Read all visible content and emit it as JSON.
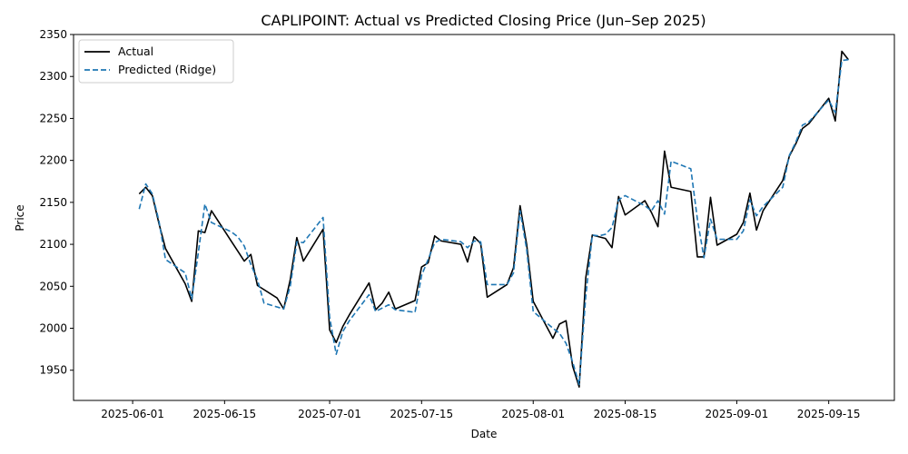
{
  "chart_data": {
    "type": "line",
    "title": "CAPLIPOINT: Actual vs Predicted Closing Price (Jun–Sep 2025)",
    "xlabel": "Date",
    "ylabel": "Price",
    "xlim": [
      "2025-05-23",
      "2025-09-25"
    ],
    "ylim": [
      1914,
      2350
    ],
    "x_ticks": [
      "2025-06-01",
      "2025-06-15",
      "2025-07-01",
      "2025-07-15",
      "2025-08-01",
      "2025-08-15",
      "2025-09-01",
      "2025-09-15"
    ],
    "y_ticks": [
      1950,
      2000,
      2050,
      2100,
      2150,
      2200,
      2250,
      2300,
      2350
    ],
    "grid": false,
    "legend": "top-left",
    "series": [
      {
        "name": "Actual",
        "color": "#000000",
        "style": "solid",
        "points": [
          [
            "2025-06-02",
            2160
          ],
          [
            "2025-06-03",
            2168
          ],
          [
            "2025-06-04",
            2158
          ],
          [
            "2025-06-05",
            2125
          ],
          [
            "2025-06-06",
            2095
          ],
          [
            "2025-06-09",
            2053
          ],
          [
            "2025-06-10",
            2032
          ],
          [
            "2025-06-11",
            2116
          ],
          [
            "2025-06-12",
            2114
          ],
          [
            "2025-06-13",
            2140
          ],
          [
            "2025-06-16",
            2104
          ],
          [
            "2025-06-17",
            2092
          ],
          [
            "2025-06-18",
            2080
          ],
          [
            "2025-06-19",
            2088
          ],
          [
            "2025-06-20",
            2051
          ],
          [
            "2025-06-23",
            2036
          ],
          [
            "2025-06-24",
            2023
          ],
          [
            "2025-06-25",
            2058
          ],
          [
            "2025-06-26",
            2108
          ],
          [
            "2025-06-27",
            2080
          ],
          [
            "2025-06-30",
            2118
          ],
          [
            "2025-07-01",
            1998
          ],
          [
            "2025-07-02",
            1983
          ],
          [
            "2025-07-03",
            2002
          ],
          [
            "2025-07-04",
            2016
          ],
          [
            "2025-07-07",
            2054
          ],
          [
            "2025-07-08",
            2022
          ],
          [
            "2025-07-09",
            2030
          ],
          [
            "2025-07-10",
            2043
          ],
          [
            "2025-07-11",
            2023
          ],
          [
            "2025-07-14",
            2033
          ],
          [
            "2025-07-15",
            2073
          ],
          [
            "2025-07-16",
            2078
          ],
          [
            "2025-07-17",
            2110
          ],
          [
            "2025-07-18",
            2104
          ],
          [
            "2025-07-21",
            2100
          ],
          [
            "2025-07-22",
            2079
          ],
          [
            "2025-07-23",
            2109
          ],
          [
            "2025-07-24",
            2101
          ],
          [
            "2025-07-25",
            2037
          ],
          [
            "2025-07-28",
            2052
          ],
          [
            "2025-07-29",
            2072
          ],
          [
            "2025-07-30",
            2146
          ],
          [
            "2025-07-31",
            2100
          ],
          [
            "2025-08-01",
            2032
          ],
          [
            "2025-08-04",
            1988
          ],
          [
            "2025-08-05",
            2005
          ],
          [
            "2025-08-06",
            2009
          ],
          [
            "2025-08-07",
            1955
          ],
          [
            "2025-08-08",
            1930
          ],
          [
            "2025-08-09",
            2060
          ],
          [
            "2025-08-10",
            2111
          ],
          [
            "2025-08-11",
            2109
          ],
          [
            "2025-08-12",
            2107
          ],
          [
            "2025-08-13",
            2096
          ],
          [
            "2025-08-14",
            2157
          ],
          [
            "2025-08-15",
            2135
          ],
          [
            "2025-08-18",
            2152
          ],
          [
            "2025-08-19",
            2138
          ],
          [
            "2025-08-20",
            2121
          ],
          [
            "2025-08-21",
            2211
          ],
          [
            "2025-08-22",
            2168
          ],
          [
            "2025-08-25",
            2163
          ],
          [
            "2025-08-26",
            2085
          ],
          [
            "2025-08-27",
            2085
          ],
          [
            "2025-08-28",
            2156
          ],
          [
            "2025-08-29",
            2099
          ],
          [
            "2025-09-01",
            2112
          ],
          [
            "2025-09-02",
            2126
          ],
          [
            "2025-09-03",
            2161
          ],
          [
            "2025-09-04",
            2117
          ],
          [
            "2025-09-05",
            2140
          ],
          [
            "2025-09-08",
            2176
          ],
          [
            "2025-09-09",
            2205
          ],
          [
            "2025-09-10",
            2220
          ],
          [
            "2025-09-11",
            2238
          ],
          [
            "2025-09-12",
            2244
          ],
          [
            "2025-09-15",
            2274
          ],
          [
            "2025-09-16",
            2247
          ],
          [
            "2025-09-17",
            2330
          ],
          [
            "2025-09-18",
            2320
          ]
        ]
      },
      {
        "name": "Predicted (Ridge)",
        "color": "#1f77b4",
        "style": "dashed",
        "points": [
          [
            "2025-06-02",
            2142
          ],
          [
            "2025-06-03",
            2172
          ],
          [
            "2025-06-04",
            2160
          ],
          [
            "2025-06-05",
            2128
          ],
          [
            "2025-06-06",
            2082
          ],
          [
            "2025-06-09",
            2066
          ],
          [
            "2025-06-10",
            2035
          ],
          [
            "2025-06-11",
            2090
          ],
          [
            "2025-06-12",
            2148
          ],
          [
            "2025-06-13",
            2126
          ],
          [
            "2025-06-16",
            2115
          ],
          [
            "2025-06-17",
            2109
          ],
          [
            "2025-06-18",
            2098
          ],
          [
            "2025-06-19",
            2076
          ],
          [
            "2025-06-20",
            2058
          ],
          [
            "2025-06-21",
            2030
          ],
          [
            "2025-06-24",
            2023
          ],
          [
            "2025-06-25",
            2050
          ],
          [
            "2025-06-26",
            2103
          ],
          [
            "2025-06-27",
            2102
          ],
          [
            "2025-06-30",
            2132
          ],
          [
            "2025-07-01",
            2013
          ],
          [
            "2025-07-02",
            1969
          ],
          [
            "2025-07-03",
            1996
          ],
          [
            "2025-07-04",
            2009
          ],
          [
            "2025-07-07",
            2040
          ],
          [
            "2025-07-08",
            2020
          ],
          [
            "2025-07-09",
            2024
          ],
          [
            "2025-07-10",
            2028
          ],
          [
            "2025-07-11",
            2022
          ],
          [
            "2025-07-14",
            2019
          ],
          [
            "2025-07-15",
            2063
          ],
          [
            "2025-07-16",
            2082
          ],
          [
            "2025-07-17",
            2102
          ],
          [
            "2025-07-18",
            2106
          ],
          [
            "2025-07-21",
            2103
          ],
          [
            "2025-07-22",
            2096
          ],
          [
            "2025-07-23",
            2104
          ],
          [
            "2025-07-24",
            2103
          ],
          [
            "2025-07-25",
            2052
          ],
          [
            "2025-07-28",
            2052
          ],
          [
            "2025-07-29",
            2066
          ],
          [
            "2025-07-30",
            2140
          ],
          [
            "2025-07-31",
            2094
          ],
          [
            "2025-08-01",
            2020
          ],
          [
            "2025-08-04",
            2000
          ],
          [
            "2025-08-05",
            1994
          ],
          [
            "2025-08-06",
            1982
          ],
          [
            "2025-08-07",
            1960
          ],
          [
            "2025-08-08",
            1933
          ],
          [
            "2025-08-09",
            2038
          ],
          [
            "2025-08-10",
            2111
          ],
          [
            "2025-08-11",
            2110
          ],
          [
            "2025-08-12",
            2112
          ],
          [
            "2025-08-13",
            2120
          ],
          [
            "2025-08-14",
            2153
          ],
          [
            "2025-08-15",
            2158
          ],
          [
            "2025-08-18",
            2146
          ],
          [
            "2025-08-19",
            2140
          ],
          [
            "2025-08-20",
            2152
          ],
          [
            "2025-08-21",
            2136
          ],
          [
            "2025-08-22",
            2199
          ],
          [
            "2025-08-25",
            2190
          ],
          [
            "2025-08-26",
            2130
          ],
          [
            "2025-08-27",
            2084
          ],
          [
            "2025-08-28",
            2130
          ],
          [
            "2025-08-29",
            2106
          ],
          [
            "2025-09-01",
            2106
          ],
          [
            "2025-09-02",
            2116
          ],
          [
            "2025-09-03",
            2153
          ],
          [
            "2025-09-04",
            2134
          ],
          [
            "2025-09-05",
            2145
          ],
          [
            "2025-09-08",
            2168
          ],
          [
            "2025-09-09",
            2206
          ],
          [
            "2025-09-10",
            2222
          ],
          [
            "2025-09-11",
            2242
          ],
          [
            "2025-09-12",
            2246
          ],
          [
            "2025-09-15",
            2272
          ],
          [
            "2025-09-16",
            2257
          ],
          [
            "2025-09-17",
            2319
          ],
          [
            "2025-09-18",
            2320
          ]
        ]
      }
    ]
  }
}
